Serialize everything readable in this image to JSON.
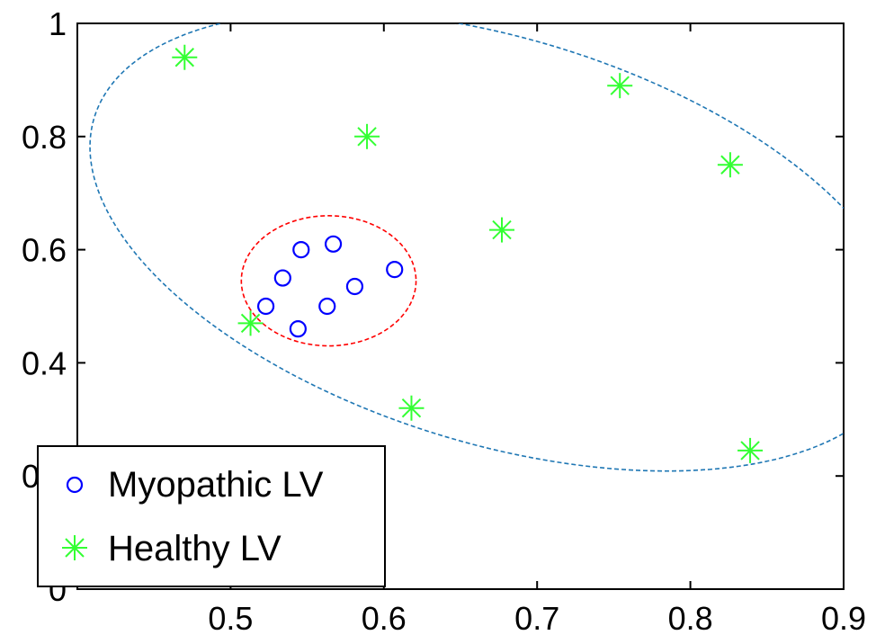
{
  "chart_data": {
    "type": "scatter",
    "title": "",
    "xlabel": "",
    "ylabel": "",
    "xlim": [
      0.4,
      0.9
    ],
    "ylim": [
      0,
      1
    ],
    "x_ticks": [
      {
        "value": 0.5,
        "label": "0.5"
      },
      {
        "value": 0.6,
        "label": "0.6"
      },
      {
        "value": 0.7,
        "label": "0.7"
      },
      {
        "value": 0.8,
        "label": "0.8"
      },
      {
        "value": 0.9,
        "label": "0.9"
      }
    ],
    "y_ticks": [
      {
        "value": 0,
        "label": "0"
      },
      {
        "value": 0.2,
        "label": "0.2"
      },
      {
        "value": 0.4,
        "label": "0.4"
      },
      {
        "value": 0.6,
        "label": "0.6"
      },
      {
        "value": 0.8,
        "label": "0.8"
      },
      {
        "value": 1,
        "label": "1"
      }
    ],
    "grid": false,
    "legend_position": "bottom-left",
    "series": [
      {
        "name": "Myopathic LV",
        "marker": "circle",
        "color": "#0000ff",
        "points": [
          {
            "x": 0.523,
            "y": 0.5
          },
          {
            "x": 0.534,
            "y": 0.55
          },
          {
            "x": 0.546,
            "y": 0.6
          },
          {
            "x": 0.567,
            "y": 0.61
          },
          {
            "x": 0.544,
            "y": 0.46
          },
          {
            "x": 0.563,
            "y": 0.5
          },
          {
            "x": 0.581,
            "y": 0.535
          },
          {
            "x": 0.607,
            "y": 0.565
          }
        ]
      },
      {
        "name": "Healthy LV",
        "marker": "asterisk",
        "color": "#33ff33",
        "points": [
          {
            "x": 0.47,
            "y": 0.94
          },
          {
            "x": 0.589,
            "y": 0.8
          },
          {
            "x": 0.677,
            "y": 0.635
          },
          {
            "x": 0.754,
            "y": 0.89
          },
          {
            "x": 0.826,
            "y": 0.75
          },
          {
            "x": 0.513,
            "y": 0.47
          },
          {
            "x": 0.618,
            "y": 0.32
          },
          {
            "x": 0.839,
            "y": 0.245
          }
        ]
      }
    ],
    "ellipses": [
      {
        "name": "myopathic-boundary",
        "color": "#ff0000",
        "style": "dashed",
        "center": [
          0.564,
          0.545
        ],
        "rx": 0.057,
        "ry": 0.115,
        "rotation_deg": 0
      },
      {
        "name": "healthy-boundary",
        "color": "#1f77b4",
        "style": "dashed",
        "center": [
          0.675,
          0.615
        ],
        "rx": 0.276,
        "ry": 0.358,
        "rotation_deg": 17
      }
    ]
  }
}
